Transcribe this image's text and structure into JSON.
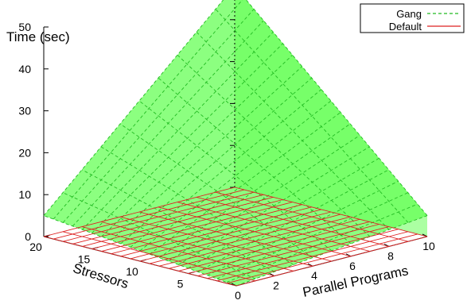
{
  "chart_data": {
    "type": "surface3d",
    "title": "",
    "zlabel": "Time (sec)",
    "xlabel": "Parallel Programs",
    "ylabel": "Stressors",
    "xlim": [
      0,
      10
    ],
    "ylim": [
      0,
      20
    ],
    "zlim": [
      0,
      50
    ],
    "x_ticks": [
      "0",
      "2",
      "4",
      "6",
      "8",
      "10"
    ],
    "y_ticks": [
      "5",
      "10",
      "15",
      "20"
    ],
    "z_ticks": [
      "0",
      "10",
      "20",
      "30",
      "40",
      "50"
    ],
    "legend_position": "top-right",
    "series": [
      {
        "name": "Gang",
        "color": "#22bb22",
        "fill": "#66ff55",
        "line_style": "dashed",
        "corners": [
          {
            "x": 0,
            "y": 0,
            "z": 0
          },
          {
            "x": 10,
            "y": 0,
            "z": 5
          },
          {
            "x": 0,
            "y": 20,
            "z": 5
          },
          {
            "x": 10,
            "y": 20,
            "z": 48
          }
        ]
      },
      {
        "name": "Default",
        "color": "#dd2222",
        "line_style": "solid",
        "corners": [
          {
            "x": 0,
            "y": 0,
            "z": 0
          },
          {
            "x": 10,
            "y": 0,
            "z": 0
          },
          {
            "x": 0,
            "y": 20,
            "z": 0
          },
          {
            "x": 10,
            "y": 20,
            "z": 0
          }
        ]
      }
    ]
  }
}
